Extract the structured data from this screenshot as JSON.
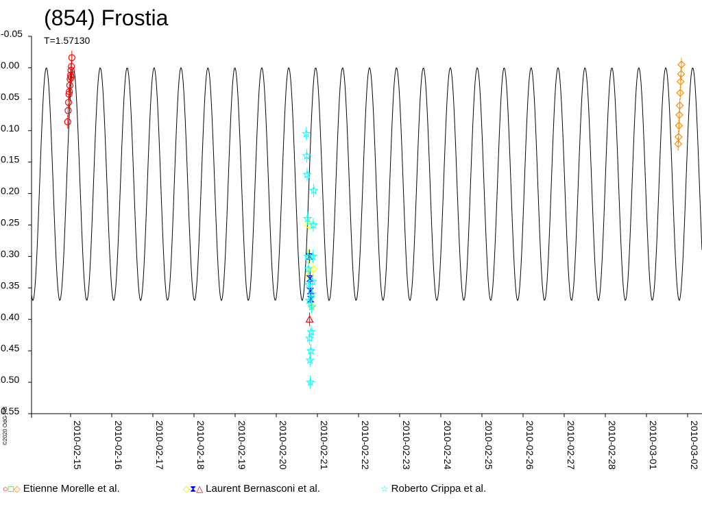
{
  "chart_data": {
    "type": "scatter",
    "title": "(854) Frostia",
    "subtitle": "T=1.57130",
    "copyright": "©2020 OdG-RB",
    "xlabel": "",
    "ylabel": "",
    "ylim": [
      -0.05,
      0.55
    ],
    "y_inverted": true,
    "y_ticks": [
      "-0.05",
      "0.00",
      "0.05",
      "0.10",
      "0.15",
      "0.20",
      "0.25",
      "0.30",
      "0.35",
      "0.40",
      "0.45",
      "0.50",
      "0.55"
    ],
    "x_ticks": [
      "2010-02-15",
      "2010-02-16",
      "2010-02-17",
      "2010-02-18",
      "2010-02-19",
      "2010-02-20",
      "2010-02-21",
      "2010-02-22",
      "2010-02-23",
      "2010-02-24",
      "2010-02-25",
      "2010-02-26",
      "2010-02-27",
      "2010-02-28",
      "2010-03-01",
      "2010-03-02"
    ],
    "xlim": [
      "2010-02-14.05",
      "2010-03-02.35"
    ],
    "grid": false,
    "legend_position": "bottom",
    "model_curve": {
      "period_days": 0.65471,
      "min_mag": 0.0,
      "max_mag": 0.37,
      "first_peak_date": "2010-02-15.72",
      "color": "#000000"
    },
    "series": [
      {
        "name": "Etienne Morelle et al.",
        "colors": [
          "#ff0000",
          "#00cc00",
          "#ff8800"
        ],
        "markers": [
          "circle",
          "square",
          "diamond"
        ],
        "points": [
          {
            "x": "2010-02-14.93",
            "y": 0.086,
            "marker": "circle",
            "color": "#ff0000"
          },
          {
            "x": "2010-02-14.94",
            "y": 0.068,
            "marker": "circle",
            "color": "#ff0000"
          },
          {
            "x": "2010-02-14.95",
            "y": 0.055,
            "marker": "circle",
            "color": "#ff0000"
          },
          {
            "x": "2010-02-14.96",
            "y": 0.042,
            "marker": "circle",
            "color": "#ff0000"
          },
          {
            "x": "2010-02-14.97",
            "y": 0.038,
            "marker": "circle",
            "color": "#ff0000"
          },
          {
            "x": "2010-02-14.98",
            "y": 0.028,
            "marker": "circle",
            "color": "#ff0000"
          },
          {
            "x": "2010-02-14.99",
            "y": 0.018,
            "marker": "circle",
            "color": "#ff0000"
          },
          {
            "x": "2010-02-15.00",
            "y": 0.012,
            "marker": "circle",
            "color": "#ff0000"
          },
          {
            "x": "2010-02-15.01",
            "y": 0.004,
            "marker": "circle",
            "color": "#ff0000"
          },
          {
            "x": "2010-02-15.02",
            "y": -0.002,
            "marker": "circle",
            "color": "#ff0000"
          },
          {
            "x": "2010-02-15.03",
            "y": -0.016,
            "marker": "circle",
            "color": "#ff0000"
          },
          {
            "x": "2010-02-15.01",
            "y": 0.015,
            "marker": "circle",
            "color": "#ff0000"
          },
          {
            "x": "2010-03-01.77",
            "y": 0.121,
            "marker": "diamond",
            "color": "#ff8800"
          },
          {
            "x": "2010-03-01.78",
            "y": 0.11,
            "marker": "diamond",
            "color": "#ff8800"
          },
          {
            "x": "2010-03-01.79",
            "y": 0.092,
            "marker": "diamond",
            "color": "#ff8800"
          },
          {
            "x": "2010-03-01.80",
            "y": 0.075,
            "marker": "diamond",
            "color": "#ff8800"
          },
          {
            "x": "2010-03-01.81",
            "y": 0.06,
            "marker": "diamond",
            "color": "#ff8800"
          },
          {
            "x": "2010-03-01.82",
            "y": 0.04,
            "marker": "diamond",
            "color": "#ff8800"
          },
          {
            "x": "2010-03-01.83",
            "y": 0.022,
            "marker": "diamond",
            "color": "#ff8800"
          },
          {
            "x": "2010-03-01.84",
            "y": 0.01,
            "marker": "diamond",
            "color": "#ff8800"
          },
          {
            "x": "2010-03-01.85",
            "y": -0.005,
            "marker": "diamond",
            "color": "#ff8800"
          }
        ]
      },
      {
        "name": "Laurent Bernasconi et al.",
        "colors": [
          "#ffff00",
          "#0000ff",
          "#ff0000"
        ],
        "markers": [
          "diamond",
          "hourglass",
          "triangle"
        ],
        "points": [
          {
            "x": "2010-02-20.78",
            "y": 0.25,
            "marker": "diamond",
            "color": "#ffff00"
          },
          {
            "x": "2010-02-20.79",
            "y": 0.3,
            "marker": "diamond",
            "color": "#ffff00"
          },
          {
            "x": "2010-02-20.80",
            "y": 0.33,
            "marker": "diamond",
            "color": "#ffff00"
          },
          {
            "x": "2010-02-20.81",
            "y": 0.3,
            "marker": "hourglass",
            "color": "#0000ff"
          },
          {
            "x": "2010-02-20.82",
            "y": 0.335,
            "marker": "hourglass",
            "color": "#0000ff"
          },
          {
            "x": "2010-02-20.83",
            "y": 0.355,
            "marker": "hourglass",
            "color": "#0000ff"
          },
          {
            "x": "2010-02-20.84",
            "y": 0.368,
            "marker": "hourglass",
            "color": "#0000ff"
          },
          {
            "x": "2010-02-20.81",
            "y": 0.4,
            "marker": "triangle",
            "color": "#ff0000"
          },
          {
            "x": "2010-02-20.86",
            "y": 0.38,
            "marker": "diamond",
            "color": "#ffff00"
          },
          {
            "x": "2010-02-20.90",
            "y": 0.32,
            "marker": "diamond",
            "color": "#ffff00"
          }
        ]
      },
      {
        "name": "Roberto Crippa et al.",
        "colors": [
          "#00ffff"
        ],
        "markers": [
          "star"
        ],
        "points": [
          {
            "x": "2010-02-20.73",
            "y": 0.105,
            "marker": "star",
            "color": "#00ffff"
          },
          {
            "x": "2010-02-20.74",
            "y": 0.14,
            "marker": "star",
            "color": "#00ffff"
          },
          {
            "x": "2010-02-20.75",
            "y": 0.17,
            "marker": "star",
            "color": "#00ffff"
          },
          {
            "x": "2010-02-20.76",
            "y": 0.24,
            "marker": "star",
            "color": "#00ffff"
          },
          {
            "x": "2010-02-20.77",
            "y": 0.3,
            "marker": "star",
            "color": "#00ffff"
          },
          {
            "x": "2010-02-20.78",
            "y": 0.32,
            "marker": "star",
            "color": "#00ffff"
          },
          {
            "x": "2010-02-20.79",
            "y": 0.345,
            "marker": "star",
            "color": "#00ffff"
          },
          {
            "x": "2010-02-20.80",
            "y": 0.37,
            "marker": "star",
            "color": "#00ffff"
          },
          {
            "x": "2010-02-20.81",
            "y": 0.43,
            "marker": "star",
            "color": "#00ffff"
          },
          {
            "x": "2010-02-20.82",
            "y": 0.465,
            "marker": "star",
            "color": "#00ffff"
          },
          {
            "x": "2010-02-20.83",
            "y": 0.5,
            "marker": "star",
            "color": "#00ffff"
          },
          {
            "x": "2010-02-20.84",
            "y": 0.45,
            "marker": "star",
            "color": "#00ffff"
          },
          {
            "x": "2010-02-20.85",
            "y": 0.42,
            "marker": "star",
            "color": "#00ffff"
          },
          {
            "x": "2010-02-20.86",
            "y": 0.38,
            "marker": "star",
            "color": "#00ffff"
          },
          {
            "x": "2010-02-20.87",
            "y": 0.36,
            "marker": "star",
            "color": "#00ffff"
          },
          {
            "x": "2010-02-20.88",
            "y": 0.34,
            "marker": "star",
            "color": "#00ffff"
          },
          {
            "x": "2010-02-20.89",
            "y": 0.3,
            "marker": "star",
            "color": "#00ffff"
          },
          {
            "x": "2010-02-20.90",
            "y": 0.25,
            "marker": "star",
            "color": "#00ffff"
          },
          {
            "x": "2010-02-20.91",
            "y": 0.195,
            "marker": "star",
            "color": "#00ffff"
          }
        ]
      }
    ]
  }
}
